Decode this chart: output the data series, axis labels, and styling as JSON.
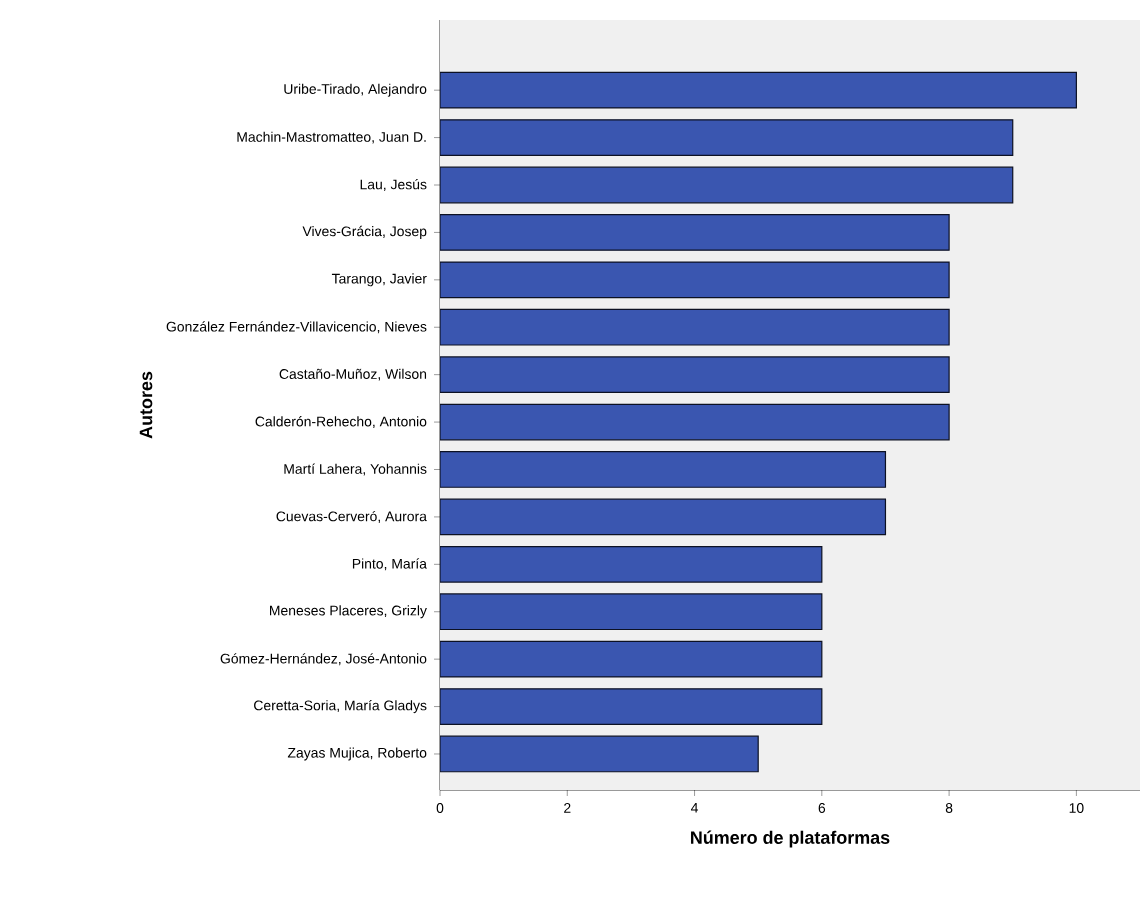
{
  "chart_data": {
    "type": "bar",
    "orientation": "horizontal",
    "xlabel": "Número de plataformas",
    "ylabel": "Autores",
    "categories": [
      "Uribe-Tirado, Alejandro",
      "Machin-Mastromatteo, Juan D.",
      "Lau, Jesús",
      "Vives-Grácia, Josep",
      "Tarango, Javier",
      "González Fernández-Villavicencio, Nieves",
      "Castaño-Muñoz, Wilson",
      "Calderón-Rehecho, Antonio",
      "Martí Lahera, Yohannis",
      "Cuevas-Cerveró, Aurora",
      "Pinto, María",
      "Meneses Placeres, Grizly",
      "Gómez-Hernández, José-Antonio",
      "Ceretta-Soria, María Gladys",
      "Zayas Mujica, Roberto"
    ],
    "values": [
      10,
      9,
      9,
      8,
      8,
      8,
      8,
      8,
      7,
      7,
      6,
      6,
      6,
      6,
      5
    ],
    "color": "#3a56b0",
    "xlim": [
      0,
      11
    ],
    "xticks": [
      0,
      2,
      4,
      6,
      8,
      10
    ]
  }
}
